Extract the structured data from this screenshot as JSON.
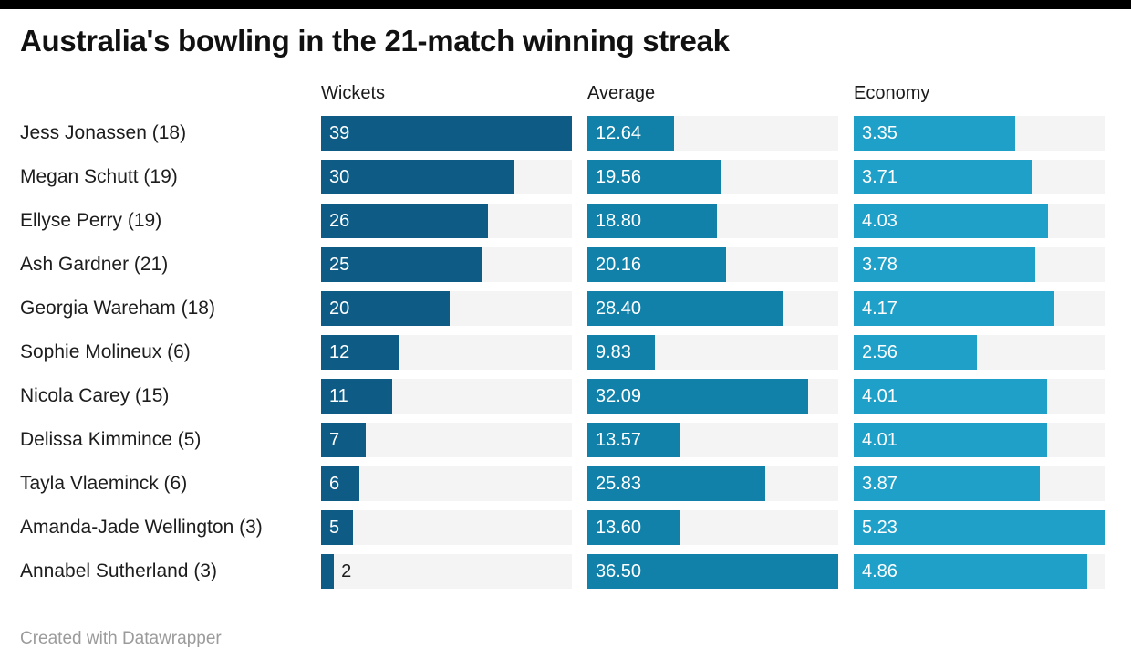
{
  "window": {
    "top_border_color": "#000000",
    "background_color": "#ffffff"
  },
  "header": {
    "title": "Australia's bowling in the 21-match winning streak"
  },
  "footer": {
    "attribution": "Created with Datawrapper"
  },
  "chart_data": {
    "type": "bar",
    "layout": "horizontal-bars-small-multiples",
    "title": "Australia's bowling in the 21-match winning streak",
    "grid": false,
    "legend_position": "column-headers",
    "track_color": "#f4f4f4",
    "bar_label_color_inside": "#ffffff",
    "bar_label_color_outside": "#1d1d1d",
    "categories": [
      "Jess Jonassen (18)",
      "Megan Schutt (19)",
      "Ellyse Perry (19)",
      "Ash Gardner (21)",
      "Georgia Wareham (18)",
      "Sophie Molineux (6)",
      "Nicola Carey (15)",
      "Delissa Kimmince (5)",
      "Tayla Vlaeminck (6)",
      "Amanda-Jade Wellington (3)",
      "Annabel Sutherland (3)"
    ],
    "series": [
      {
        "name": "Wickets",
        "color": "#0e5c85",
        "axis_max": 39,
        "values": [
          39,
          30,
          26,
          25,
          20,
          12,
          11,
          7,
          6,
          5,
          2
        ],
        "labels": [
          "39",
          "30",
          "26",
          "25",
          "20",
          "12",
          "11",
          "7",
          "6",
          "5",
          "2"
        ]
      },
      {
        "name": "Average",
        "color": "#1181aa",
        "axis_max": 36.5,
        "values": [
          12.64,
          19.56,
          18.8,
          20.16,
          28.4,
          9.83,
          32.09,
          13.57,
          25.83,
          13.6,
          36.5
        ],
        "labels": [
          "12.64",
          "19.56",
          "18.80",
          "20.16",
          "28.40",
          "9.83",
          "32.09",
          "13.57",
          "25.83",
          "13.60",
          "36.50"
        ]
      },
      {
        "name": "Economy",
        "color": "#1fa0c9",
        "axis_max": 5.23,
        "values": [
          3.35,
          3.71,
          4.03,
          3.78,
          4.17,
          2.56,
          4.01,
          4.01,
          3.87,
          5.23,
          4.86
        ],
        "labels": [
          "3.35",
          "3.71",
          "4.03",
          "3.78",
          "4.17",
          "2.56",
          "4.01",
          "4.01",
          "3.87",
          "5.23",
          "4.86"
        ]
      }
    ]
  }
}
